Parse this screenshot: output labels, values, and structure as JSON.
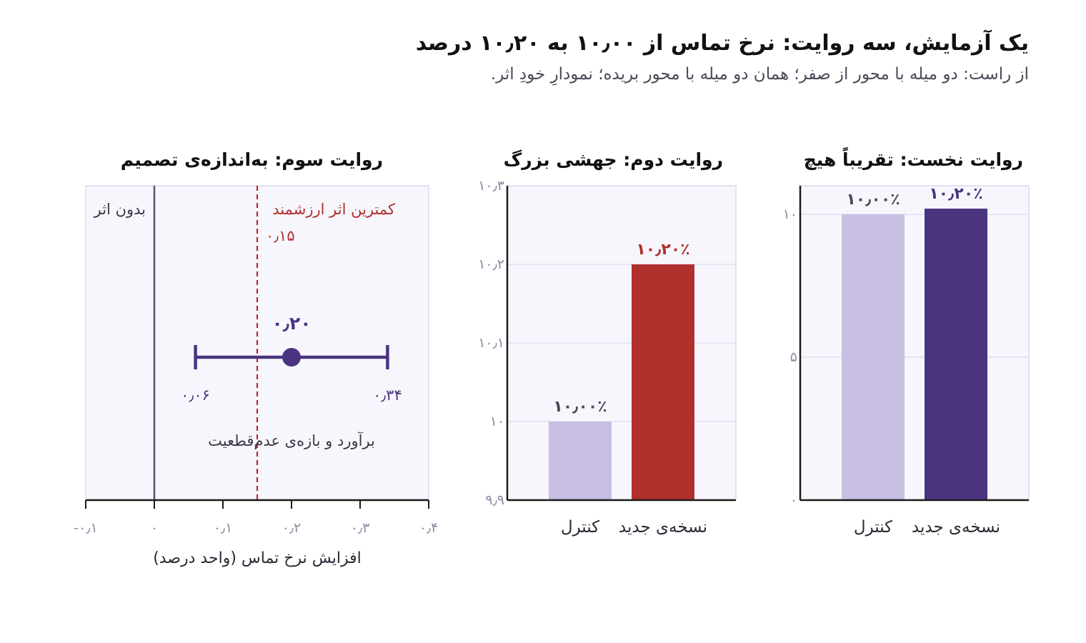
{
  "header": {
    "title": "یک آزمایش، سه روایت: نرخ تماس از ۱۰٫۰۰ به ۱۰٫۲۰ درصد",
    "subtitle": "از راست: دو میله با محور از صفر؛ همان دو میله با محور بریده؛ نمودارِ خودِ اثر."
  },
  "colors": {
    "control": "#c9bfe3",
    "treatment": "#4a3480",
    "treatment_alt": "#b0302e",
    "threshold": "#b0302e",
    "interval": "#4a3480",
    "panel_bg": "#f7f6fc",
    "grid": "#dcd9ee",
    "axis": "#1a1a1a",
    "zero_line": "#555566",
    "tick_text": "#8a8aa5"
  },
  "chart_data": [
    {
      "type": "bar",
      "title": "روایت نخست: تقریباً هیچ",
      "categories": [
        "نسخه‌ی جدید",
        "کنترل"
      ],
      "values": [
        10.2,
        10.0
      ],
      "data_labels": [
        "۱۰٫۲۰٪",
        "۱۰٫۰۰٪"
      ],
      "bar_colors": [
        "#4a3480",
        "#c9bfe3"
      ],
      "label_colors": [
        "#4a3480",
        "#4a4a5a"
      ],
      "ylim": [
        0,
        11
      ],
      "yticks": [
        0,
        5,
        10
      ],
      "ytick_labels": [
        "۰",
        "۵",
        "۱۰"
      ],
      "grid": true
    },
    {
      "type": "bar",
      "title": "روایت دوم: جهشی بزرگ",
      "categories": [
        "نسخه‌ی جدید",
        "کنترل"
      ],
      "values": [
        10.2,
        10.0
      ],
      "data_labels": [
        "۱۰٫۲۰٪",
        "۱۰٫۰۰٪"
      ],
      "bar_colors": [
        "#b0302e",
        "#c9bfe3"
      ],
      "label_colors": [
        "#b0302e",
        "#4a4a5a"
      ],
      "ylim": [
        9.9,
        10.3
      ],
      "yticks": [
        9.9,
        10.0,
        10.1,
        10.2,
        10.3
      ],
      "ytick_labels": [
        "۹٫۹",
        "۱۰",
        "۱۰٫۱",
        "۱۰٫۲",
        "۱۰٫۳"
      ],
      "grid": true
    },
    {
      "type": "scatter",
      "title": "روایت سوم: به‌اندازه‌ی تصمیم",
      "xlabel": "افزایش نرخ تماس (واحد درصد)",
      "xlim": [
        -0.1,
        0.4
      ],
      "xticks": [
        -0.1,
        0,
        0.1,
        0.2,
        0.3,
        0.4
      ],
      "xtick_labels": [
        "-۰٫۱",
        "۰",
        "۰٫۱",
        "۰٫۲",
        "۰٫۳",
        "۰٫۴"
      ],
      "estimate": 0.2,
      "estimate_label": "۰٫۲۰",
      "ci": [
        0.06,
        0.34
      ],
      "ci_labels": [
        "۰٫۰۶",
        "۰٫۳۴"
      ],
      "zero_line_label": "بدون اثر",
      "threshold": 0.15,
      "threshold_label": "کمترین اثر ارزشمند",
      "threshold_value_label": "۰٫۱۵",
      "annotation": "برآورد و بازه‌ی عدم‌قطعیت",
      "grid": false
    }
  ]
}
